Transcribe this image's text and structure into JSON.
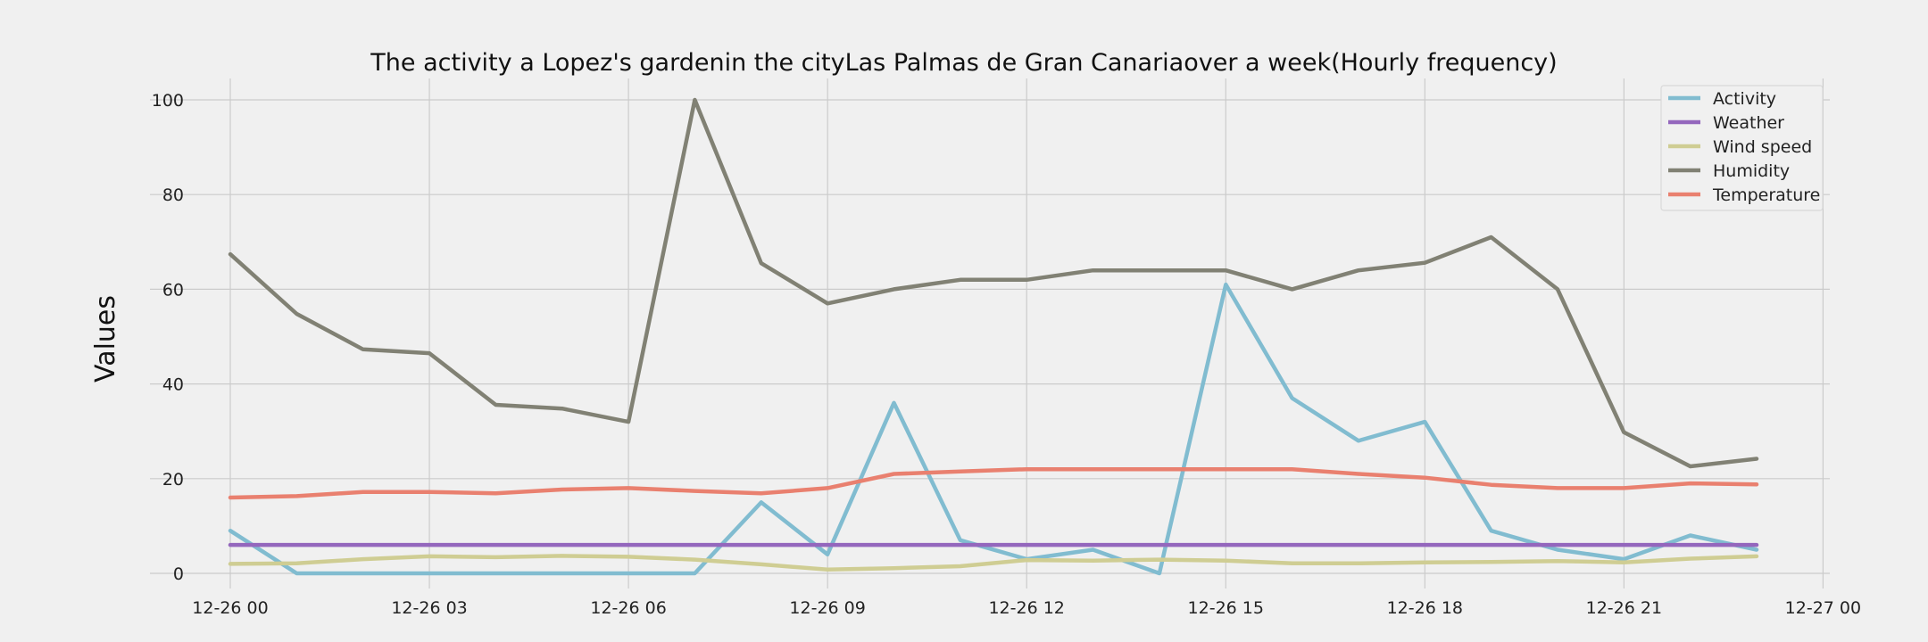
{
  "chart_data": {
    "type": "line",
    "title": "The activity a Lopez's gardenin the cityLas Palmas de Gran Canariaover a week(Hourly frequency)",
    "xlabel": "",
    "ylabel": "Values",
    "x": [
      "12-26 00:00",
      "12-26 01:00",
      "12-26 02:00",
      "12-26 03:00",
      "12-26 04:00",
      "12-26 05:00",
      "12-26 06:00",
      "12-26 07:00",
      "12-26 08:00",
      "12-26 09:00",
      "12-26 10:00",
      "12-26 11:00",
      "12-26 12:00",
      "12-26 13:00",
      "12-26 14:00",
      "12-26 15:00",
      "12-26 16:00",
      "12-26 17:00",
      "12-26 18:00",
      "12-26 19:00",
      "12-26 20:00",
      "12-26 21:00",
      "12-26 22:00",
      "12-26 23:00"
    ],
    "x_ticks": [
      "12-26 00",
      "12-26 03",
      "12-26 06",
      "12-26 09",
      "12-26 12",
      "12-26 15",
      "12-26 18",
      "12-26 21",
      "12-27 00"
    ],
    "xlim": [
      "12-25 22:52",
      "12-27 00:08"
    ],
    "y_ticks": [
      0,
      20,
      40,
      60,
      80,
      100
    ],
    "ylim": [
      -4,
      105
    ],
    "grid": true,
    "legend_position": "top-right",
    "series": [
      {
        "name": "Activity",
        "color": "#81bcd0",
        "values": [
          9,
          0,
          0,
          0,
          0,
          0,
          0,
          0,
          15,
          4,
          36,
          7,
          3,
          5,
          0,
          61,
          37,
          28,
          32,
          9,
          5,
          3,
          8,
          5
        ]
      },
      {
        "name": "Weather",
        "color": "#9467bd",
        "values": [
          6,
          6,
          6,
          6,
          6,
          6,
          6,
          6,
          6,
          6,
          6,
          6,
          6,
          6,
          6,
          6,
          6,
          6,
          6,
          6,
          6,
          6,
          6,
          6
        ]
      },
      {
        "name": "Wind speed",
        "color": "#cfcd93",
        "values": [
          2,
          2.1,
          3,
          3.6,
          3.4,
          3.7,
          3.5,
          2.9,
          1.9,
          0.8,
          1.1,
          1.5,
          2.8,
          2.7,
          2.9,
          2.7,
          2.1,
          2.1,
          2.3,
          2.4,
          2.6,
          2.3,
          3.1,
          3.6
        ]
      },
      {
        "name": "Humidity",
        "color": "#818174",
        "values": [
          67.4,
          54.8,
          47.3,
          46.5,
          35.6,
          34.8,
          32,
          100,
          65.5,
          57,
          60,
          62,
          62,
          64,
          64,
          64,
          60,
          64,
          65.6,
          71,
          60,
          29.8,
          22.6,
          24.2
        ]
      },
      {
        "name": "Temperature",
        "color": "#e9806f",
        "values": [
          16,
          16.3,
          17.2,
          17.2,
          16.9,
          17.7,
          18,
          17.4,
          16.9,
          18,
          21,
          21.5,
          22,
          22,
          22,
          22,
          22,
          21,
          20.2,
          18.7,
          18,
          18,
          19,
          18.8
        ]
      }
    ]
  }
}
